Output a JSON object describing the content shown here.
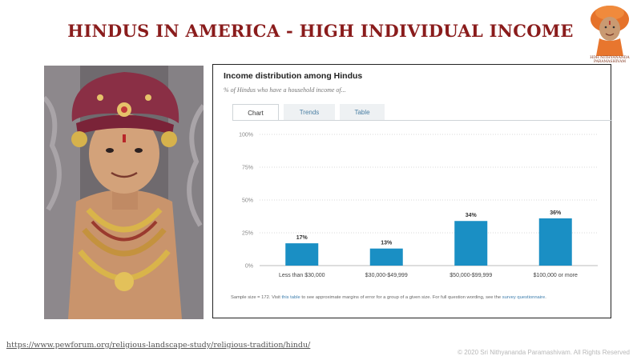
{
  "slide": {
    "title": "HINDUS IN AMERICA - HIGH INDIVIDUAL INCOME",
    "logo_caption_line1": "HDH NITHYANANDA",
    "logo_caption_line2": "PARAMASHIVAM",
    "source_url": "https://www.pewforum.org/religious-landscape-study/religious-tradition/hindu/",
    "copyright": "© 2020 Sri Nithyananda Paramashivam. All Rights Reserved"
  },
  "card": {
    "title": "Income distribution among Hindus",
    "subtitle": "% of Hindus who have a household income of...",
    "tabs": {
      "chart": "Chart",
      "trends": "Trends",
      "table": "Table"
    },
    "footnote": {
      "part1": "Sample size = 172. Visit ",
      "link1": "this table",
      "part2": " to see approximate margins of error for a group of a given size. For full question wording, see the ",
      "link2": "survey questionnaire",
      "part3": "."
    }
  },
  "colors": {
    "title": "#8a1c1c",
    "bar": "#1a8fc4",
    "tab_link": "#4a7fa3"
  },
  "chart_data": {
    "type": "bar",
    "categories": [
      "Less than $30,000",
      "$30,000-$49,999",
      "$50,000-$99,999",
      "$100,000 or more"
    ],
    "values": [
      17,
      13,
      34,
      36
    ],
    "data_labels": [
      "17%",
      "13%",
      "34%",
      "36%"
    ],
    "y_ticks": [
      0,
      25,
      50,
      75,
      100
    ],
    "y_tick_labels": [
      "0%",
      "25%",
      "50%",
      "75%",
      "100%"
    ],
    "ylim": [
      0,
      100
    ],
    "grid": true
  }
}
